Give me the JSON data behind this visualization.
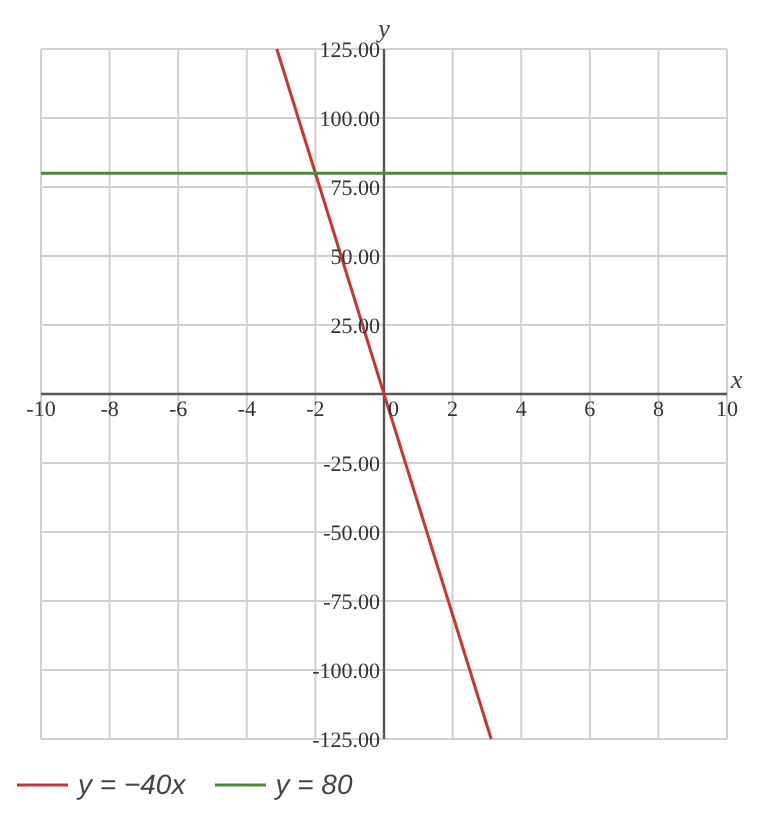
{
  "chart_data": {
    "type": "line",
    "xlabel": "x",
    "ylabel": "y",
    "xlim": [
      -10,
      10
    ],
    "ylim": [
      -125,
      125
    ],
    "xticks": [
      -10,
      -8,
      -6,
      -4,
      -2,
      0,
      2,
      4,
      6,
      8,
      10
    ],
    "yticks": [
      {
        "value": -125,
        "label": "-125.00"
      },
      {
        "value": -100,
        "label": "-100.00"
      },
      {
        "value": -75,
        "label": "-75.00"
      },
      {
        "value": -50,
        "label": "-50.00"
      },
      {
        "value": -25,
        "label": "-25.00"
      },
      {
        "value": 0,
        "label": null
      },
      {
        "value": 25,
        "label": "25.00"
      },
      {
        "value": 50,
        "label": "50.00"
      },
      {
        "value": 75,
        "label": "75.00"
      },
      {
        "value": 100,
        "label": "100.00"
      },
      {
        "value": 125,
        "label": "125.00"
      }
    ],
    "grid": true,
    "legend": "bottom",
    "marker": "none",
    "line_style": "solid",
    "series": [
      {
        "name": "y = −40x",
        "color": "#cc3333",
        "x": [
          -3.125,
          3.125
        ],
        "values": [
          125,
          -125
        ]
      },
      {
        "name": "y = 80",
        "color": "#4a8a3a",
        "x": [
          -10,
          10
        ],
        "values": [
          80,
          80
        ]
      }
    ]
  }
}
